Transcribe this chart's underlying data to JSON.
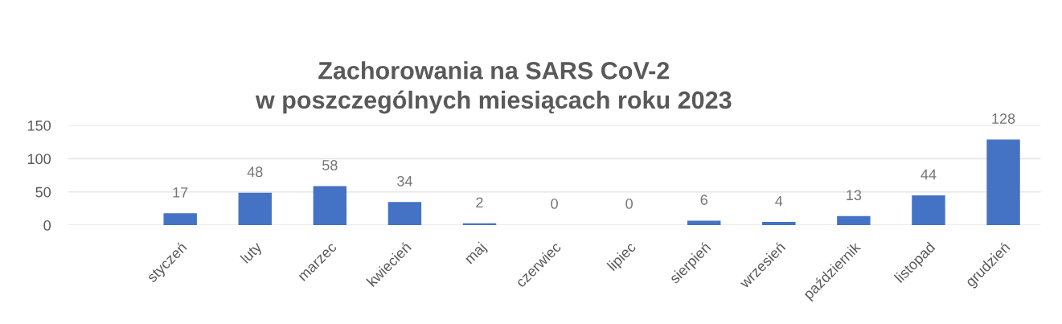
{
  "chart_data": {
    "type": "bar",
    "title": "Zachorowania na SARS CoV-2\nw poszczególnych miesiącach roku 2023",
    "categories": [
      null,
      "styczeń",
      "luty",
      "marzec",
      "kwiecień",
      "maj",
      "czerwiec",
      "lipiec",
      "sierpień",
      "wrzesień",
      "październik",
      "listopad",
      "grudzień"
    ],
    "values": [
      null,
      17,
      48,
      58,
      34,
      2,
      0,
      0,
      6,
      4,
      13,
      44,
      128
    ],
    "color": "#4472c4",
    "ylim": [
      0,
      150
    ],
    "yticks": [
      0,
      50,
      100,
      150
    ],
    "grid": "y",
    "data_labels": true
  }
}
